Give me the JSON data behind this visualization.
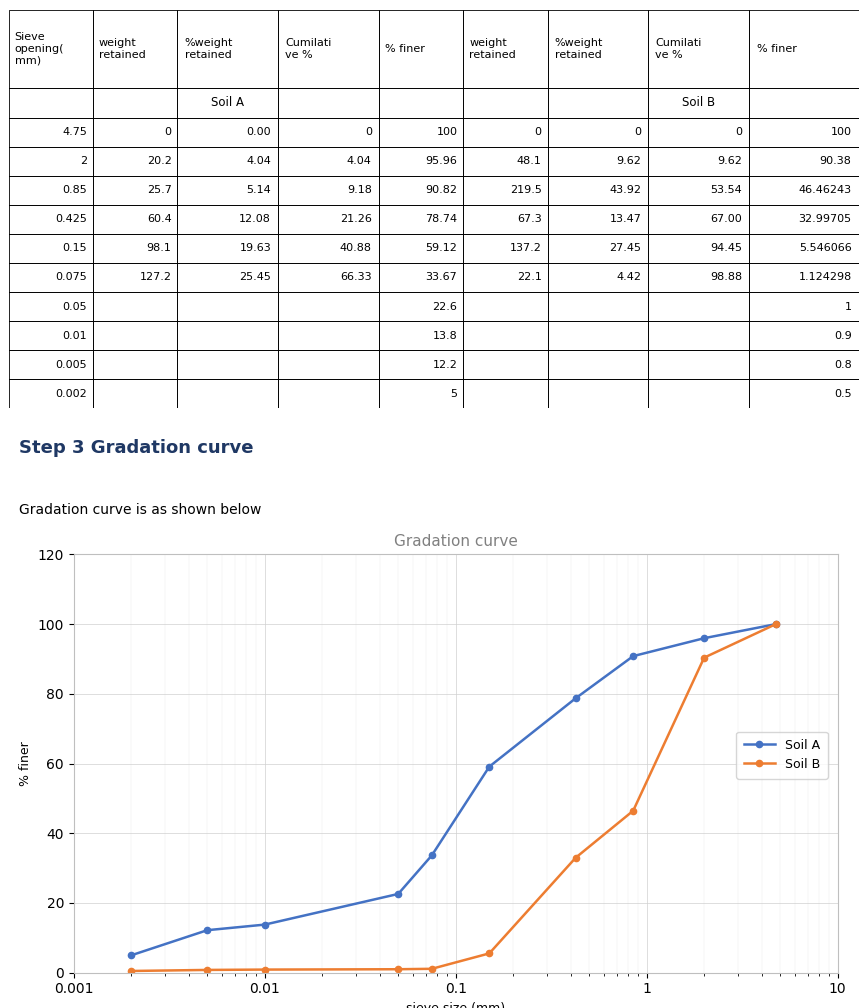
{
  "table": {
    "col_headers": [
      "Sieve\nopening(\nmm)",
      "weight\nretained",
      "%weight\nretained",
      "Cumilati\nve %",
      "% finer",
      "weight\nretained",
      "%weight\nretained",
      "Cumilati\nve %",
      "% finer"
    ],
    "soil_a_label": "Soil A",
    "soil_b_label": "Soil B",
    "rows": [
      [
        "4.75",
        "0",
        "0.00",
        "0",
        "100",
        "0",
        "0",
        "0",
        "100"
      ],
      [
        "2",
        "20.2",
        "4.04",
        "4.04",
        "95.96",
        "48.1",
        "9.62",
        "9.62",
        "90.38"
      ],
      [
        "0.85",
        "25.7",
        "5.14",
        "9.18",
        "90.82",
        "219.5",
        "43.92",
        "53.54",
        "46.46243"
      ],
      [
        "0.425",
        "60.4",
        "12.08",
        "21.26",
        "78.74",
        "67.3",
        "13.47",
        "67.00",
        "32.99705"
      ],
      [
        "0.15",
        "98.1",
        "19.63",
        "40.88",
        "59.12",
        "137.2",
        "27.45",
        "94.45",
        "5.546066"
      ],
      [
        "0.075",
        "127.2",
        "25.45",
        "66.33",
        "33.67",
        "22.1",
        "4.42",
        "98.88",
        "1.124298"
      ],
      [
        "0.05",
        "",
        "",
        "",
        "22.6",
        "",
        "",
        "",
        "1"
      ],
      [
        "0.01",
        "",
        "",
        "",
        "13.8",
        "",
        "",
        "",
        "0.9"
      ],
      [
        "0.005",
        "",
        "",
        "",
        "12.2",
        "",
        "",
        "",
        "0.8"
      ],
      [
        "0.002",
        "",
        "",
        "",
        "5",
        "",
        "",
        "",
        "0.5"
      ]
    ],
    "col_widths": [
      0.088,
      0.088,
      0.105,
      0.105,
      0.088,
      0.088,
      0.105,
      0.105,
      0.115
    ]
  },
  "step3_title": "Step 3 Gradation curve",
  "step3_subtitle": "Gradation curve is as shown below",
  "chart_title": "Gradation curve",
  "chart_xlabel": "sieve size (mm)",
  "chart_ylabel": "% finer",
  "soil_a": {
    "x": [
      0.002,
      0.005,
      0.01,
      0.05,
      0.075,
      0.15,
      0.425,
      0.85,
      2,
      4.75
    ],
    "y": [
      5,
      12.2,
      13.8,
      22.6,
      33.67,
      59.12,
      78.74,
      90.82,
      95.96,
      100
    ],
    "color": "#4472C4",
    "label": "Soil A"
  },
  "soil_b": {
    "x": [
      0.002,
      0.005,
      0.01,
      0.05,
      0.075,
      0.15,
      0.425,
      0.85,
      2,
      4.75
    ],
    "y": [
      0.5,
      0.8,
      0.9,
      1.0,
      1.124298,
      5.546066,
      32.99705,
      46.46243,
      90.38,
      100
    ],
    "color": "#ED7D31",
    "label": "Soil B"
  },
  "ylim": [
    0,
    120
  ],
  "yticks": [
    0,
    20,
    40,
    60,
    80,
    100,
    120
  ],
  "background_color": "#FFFFFF",
  "step3_color": "#1F3864",
  "chart_border_color": "#BFBFBF",
  "grid_color": "#D0D0D0"
}
